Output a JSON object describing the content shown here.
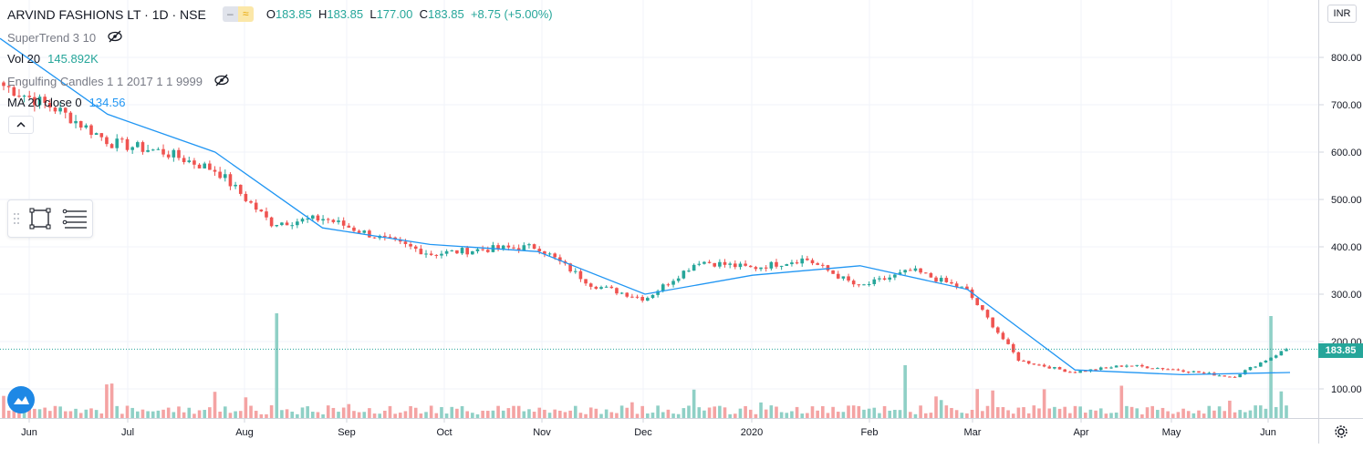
{
  "header": {
    "symbol": "ARVIND FASHIONS LT · 1D · NSE",
    "ohlc": {
      "o_label": "O",
      "o_value": "183.85",
      "h_label": "H",
      "h_value": "183.85",
      "l_label": "L",
      "l_value": "177.00",
      "c_label": "C",
      "c_value": "183.85",
      "change": "+8.75 (+5.00%)"
    }
  },
  "indicators": {
    "supertrend": {
      "label": "SuperTrend 3 10"
    },
    "volume": {
      "label": "Vol 20",
      "value": "145.892K"
    },
    "engulfing": {
      "label": "Engulfing Candles 1 1 2017 1 1 9999"
    },
    "ma": {
      "label": "MA 20 close 0",
      "value": "134.56"
    }
  },
  "price_axis": {
    "currency": "INR",
    "last_price": "183.85"
  },
  "colors": {
    "up": "#26a69a",
    "down": "#ef5350",
    "ma": "#2196f3",
    "vol_up": "#8fd0c6",
    "vol_down": "#f4a3a3",
    "grid": "#f0f3fa",
    "axis_text": "#131722"
  },
  "icons": {
    "eye": "eye-crossed-icon",
    "collapse": "chevron-up-icon",
    "rect": "rectangle-tool-icon",
    "lines": "horizontal-lines-icon",
    "settings": "gear-icon",
    "logo": "cloud-logo-icon"
  },
  "chart_data": {
    "type": "candlestick",
    "y_axis": {
      "ticks": [
        "100.00",
        "200.00",
        "300.00",
        "400.00",
        "500.00",
        "600.00",
        "700.00",
        "800.00"
      ],
      "range": [
        40,
        870
      ]
    },
    "x_axis": {
      "ticks": [
        "Jun",
        "Jul",
        "Aug",
        "Sep",
        "Oct",
        "Nov",
        "Dec",
        "2020",
        "Feb",
        "Mar",
        "Apr",
        "May",
        "Jun"
      ]
    },
    "close_series": [
      {
        "label": "Jun 2019",
        "close": 740
      },
      {
        "label": "Jun 2019 mid",
        "close": 690
      },
      {
        "label": "Jul 2019",
        "close": 620
      },
      {
        "label": "Jul 2019 mid",
        "close": 600
      },
      {
        "label": "Aug 2019",
        "close": 560
      },
      {
        "label": "Aug 2019 mid",
        "close": 450
      },
      {
        "label": "Sep 2019",
        "close": 460
      },
      {
        "label": "Sep 2019 mid",
        "close": 420
      },
      {
        "label": "Oct 2019",
        "close": 385
      },
      {
        "label": "Oct 2019 mid",
        "close": 395
      },
      {
        "label": "Nov 2019",
        "close": 400
      },
      {
        "label": "Nov 2019 mid",
        "close": 320
      },
      {
        "label": "Dec 2019",
        "close": 290
      },
      {
        "label": "Dec 2019 mid",
        "close": 370
      },
      {
        "label": "Jan 2020",
        "close": 355
      },
      {
        "label": "Jan 2020 mid",
        "close": 375
      },
      {
        "label": "Feb 2020",
        "close": 315
      },
      {
        "label": "Feb 2020 mid",
        "close": 350
      },
      {
        "label": "Mar 2020",
        "close": 310
      },
      {
        "label": "Mar 2020 mid",
        "close": 160
      },
      {
        "label": "Apr 2020",
        "close": 135
      },
      {
        "label": "Apr 2020 mid",
        "close": 150
      },
      {
        "label": "May 2020",
        "close": 140
      },
      {
        "label": "May 2020 mid",
        "close": 125
      },
      {
        "label": "Jun 2020",
        "close": 183.85
      }
    ],
    "ma_series": [
      {
        "label": "Jun 2019",
        "value": 840
      },
      {
        "label": "Jul 2019",
        "value": 680
      },
      {
        "label": "Aug 2019",
        "value": 600
      },
      {
        "label": "Sep 2019",
        "value": 440
      },
      {
        "label": "Oct 2019",
        "value": 405
      },
      {
        "label": "Nov 2019",
        "value": 390
      },
      {
        "label": "Dec 2019",
        "value": 300
      },
      {
        "label": "2020",
        "value": 340
      },
      {
        "label": "Feb 2020",
        "value": 360
      },
      {
        "label": "Mar 2020",
        "value": 310
      },
      {
        "label": "Apr 2020",
        "value": 140
      },
      {
        "label": "May 2020",
        "value": 130
      },
      {
        "label": "Jun 2020",
        "value": 134.56
      }
    ],
    "volume_spikes": [
      {
        "label": "Aug 2019",
        "direction": "down"
      },
      {
        "label": "Feb 2020",
        "direction": "up"
      },
      {
        "label": "May 2020",
        "direction": "up"
      }
    ]
  }
}
